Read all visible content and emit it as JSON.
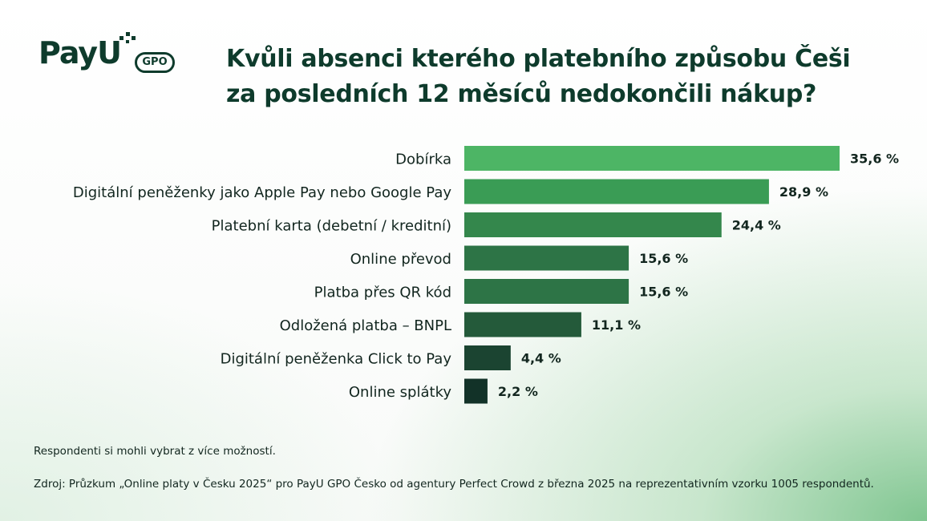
{
  "logo": {
    "name": "PayU",
    "badge": "GPO",
    "icon": "payu-pixel-dots-icon"
  },
  "title_lines": [
    "Kvůli absenci kterého platebního způsobu Češi",
    "za posledních 12 měsíců nedokončili nákup?"
  ],
  "note": "Respondenti si mohli vybrat z více možností.",
  "source": "Zdroj: Průzkum „Online platy v Česku 2025“ pro PayU GPO Česko od agentury Perfect Crowd z března 2025 na reprezentativním vzorku 1005 respondentů.",
  "colors": {
    "bar_gradient": [
      "#4db565",
      "#3a9c55",
      "#34874c",
      "#2d7446",
      "#2d7446",
      "#245a3a",
      "#1b4431",
      "#123228"
    ],
    "text": "#12261f",
    "title": "#0e3b2c"
  },
  "chart_data": {
    "type": "bar",
    "orientation": "horizontal",
    "title": "Kvůli absenci kterého platebního způsobu Češi za posledních 12 měsíců nedokončili nákup?",
    "categories": [
      "Dobírka",
      "Digitální peněženky jako Apple Pay nebo Google Pay",
      "Platební karta (debetní / kreditní)",
      "Online převod",
      "Platba přes QR kód",
      "Odložená platba – BNPL",
      "Digitální peněženka Click to Pay",
      "Online splátky"
    ],
    "values": [
      35.6,
      28.9,
      24.4,
      15.6,
      15.6,
      11.1,
      4.4,
      2.2
    ],
    "value_labels": [
      "35,6 %",
      "28,9 %",
      "24,4 %",
      "15,6 %",
      "15,6 %",
      "11,1 %",
      "4,4 %",
      "2,2 %"
    ],
    "unit": "%",
    "xlim": [
      0,
      35.6
    ],
    "grid": false,
    "legend": "none"
  }
}
